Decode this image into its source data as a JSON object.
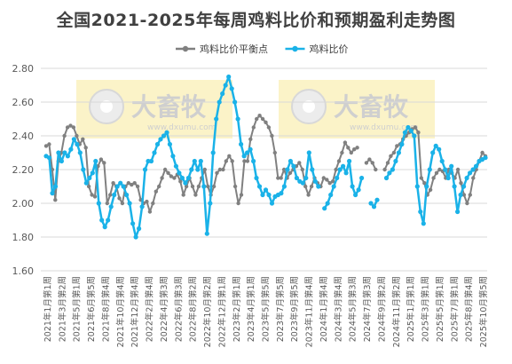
{
  "chart_data": {
    "type": "line",
    "title": "全国2021-2025年每周鸡料比价和预期盈利走势图",
    "xlabel": "",
    "ylabel": "",
    "ylim": [
      1.6,
      2.8
    ],
    "yticks": [
      "1.60",
      "1.80",
      "2.00",
      "2.20",
      "2.40",
      "2.60",
      "2.80"
    ],
    "grid": "horizontal",
    "legend_position": "top-center",
    "x_tick_labels": [
      "2021年1月第1周",
      "2021年3月第2周",
      "2021年5月第1周",
      "2021年6月第5周",
      "2021年8月第4周",
      "2021年10月第4周",
      "2021年12月第4周",
      "2022年2月第4周",
      "2022年4月第3周",
      "2022年6月第3周",
      "2022年8月第2周",
      "2022年10月第2周",
      "2022年12月第1周",
      "2023年2月第1周",
      "2023年4月第1周",
      "2023年5月第5周",
      "2023年7月第5周",
      "2023年9月第5周",
      "2023年11月第4周",
      "2024年1月第4周",
      "2024年3月第4周",
      "2024年5月第3周",
      "2024年7月第3周",
      "2024年9月第2周",
      "2024年11月第2周",
      "2025年1月第1周",
      "2025年3月第1周",
      "2025年5月第1周",
      "2025年7月第1周",
      "2025年8月第4周",
      "2025年10月第5周"
    ],
    "series": [
      {
        "name": "鸡料比价平衡点",
        "color": "#808080",
        "marker": "circle",
        "values": [
          2.34,
          2.35,
          2.2,
          2.02,
          2.25,
          2.3,
          2.4,
          2.45,
          2.46,
          2.45,
          2.4,
          2.35,
          2.38,
          2.33,
          2.1,
          2.05,
          2.04,
          2.22,
          2.26,
          2.24,
          2.0,
          2.05,
          2.12,
          2.1,
          2.03,
          2.0,
          2.1,
          2.12,
          2.11,
          2.12,
          2.1,
          2.02,
          2.0,
          2.01,
          1.95,
          2.0,
          2.07,
          2.1,
          2.15,
          2.2,
          2.18,
          2.16,
          2.15,
          2.17,
          2.13,
          2.05,
          2.1,
          2.15,
          2.1,
          2.05,
          2.1,
          2.15,
          2.2,
          2.1,
          2.05,
          2.1,
          2.18,
          2.2,
          2.2,
          2.25,
          2.28,
          2.25,
          2.1,
          2.0,
          2.05,
          2.25,
          2.25,
          2.38,
          2.45,
          2.5,
          2.52,
          2.5,
          2.48,
          2.45,
          2.4,
          2.3,
          2.15,
          2.15,
          2.2,
          2.15,
          2.18,
          2.2,
          2.22,
          2.24,
          2.2,
          2.1,
          2.05,
          2.1,
          2.15,
          2.12,
          2.1,
          2.15,
          2.14,
          2.12,
          2.13,
          2.2,
          2.25,
          2.3,
          2.36,
          2.33,
          2.3,
          2.32,
          2.33,
          null,
          null,
          2.24,
          2.26,
          2.24,
          2.2,
          null,
          null,
          2.2,
          2.24,
          2.28,
          2.3,
          2.34,
          2.35,
          2.38,
          2.4,
          2.42,
          2.44,
          2.45,
          2.42,
          2.15,
          2.12,
          2.05,
          2.08,
          2.15,
          2.18,
          2.2,
          2.19,
          2.15,
          2.2,
          2.18,
          2.15,
          2.2,
          2.12,
          2.05,
          2.0,
          2.05,
          2.15,
          2.2,
          2.25,
          2.3,
          2.28
        ]
      },
      {
        "name": "鸡料比价",
        "color": "#1ab2e8",
        "marker": "circle",
        "values": [
          2.28,
          2.27,
          2.06,
          2.1,
          2.3,
          2.25,
          2.3,
          2.28,
          2.32,
          2.38,
          2.35,
          2.3,
          2.2,
          2.12,
          2.15,
          2.18,
          2.25,
          2.0,
          1.9,
          1.86,
          1.9,
          1.98,
          2.05,
          2.1,
          2.12,
          2.1,
          2.05,
          2.0,
          1.88,
          1.8,
          1.85,
          1.98,
          2.2,
          2.25,
          2.25,
          2.3,
          2.35,
          2.38,
          2.4,
          2.42,
          2.35,
          2.28,
          2.22,
          2.18,
          2.15,
          2.12,
          2.15,
          2.2,
          2.25,
          2.2,
          2.25,
          2.1,
          1.82,
          2.0,
          2.3,
          2.5,
          2.6,
          2.65,
          2.7,
          2.75,
          2.68,
          2.6,
          2.5,
          2.35,
          2.28,
          2.3,
          2.32,
          2.25,
          2.15,
          2.1,
          2.05,
          2.08,
          2.05,
          2.0,
          2.04,
          2.05,
          2.06,
          2.1,
          2.2,
          2.25,
          2.22,
          2.15,
          2.13,
          2.12,
          2.15,
          2.3,
          2.2,
          2.13,
          2.1,
          null,
          1.97,
          2.0,
          2.05,
          2.1,
          2.15,
          2.2,
          2.22,
          2.18,
          2.25,
          2.1,
          2.05,
          2.08,
          2.15,
          null,
          null,
          2.0,
          1.98,
          2.02,
          null,
          null,
          2.15,
          2.18,
          2.2,
          2.25,
          2.3,
          2.35,
          2.42,
          2.45,
          2.43,
          2.4,
          2.1,
          1.95,
          1.88,
          2.1,
          2.2,
          2.3,
          2.34,
          2.32,
          2.25,
          2.2,
          2.15,
          2.22,
          2.1,
          1.95,
          2.05,
          2.1,
          2.15,
          2.18,
          2.2,
          2.22,
          2.25,
          2.26,
          2.27
        ]
      }
    ]
  },
  "watermark": {
    "brand": "大畜牧",
    "url": "www.dxumu.com",
    "color": "#fbf3c8",
    "text_color": "#cfcfcf"
  }
}
